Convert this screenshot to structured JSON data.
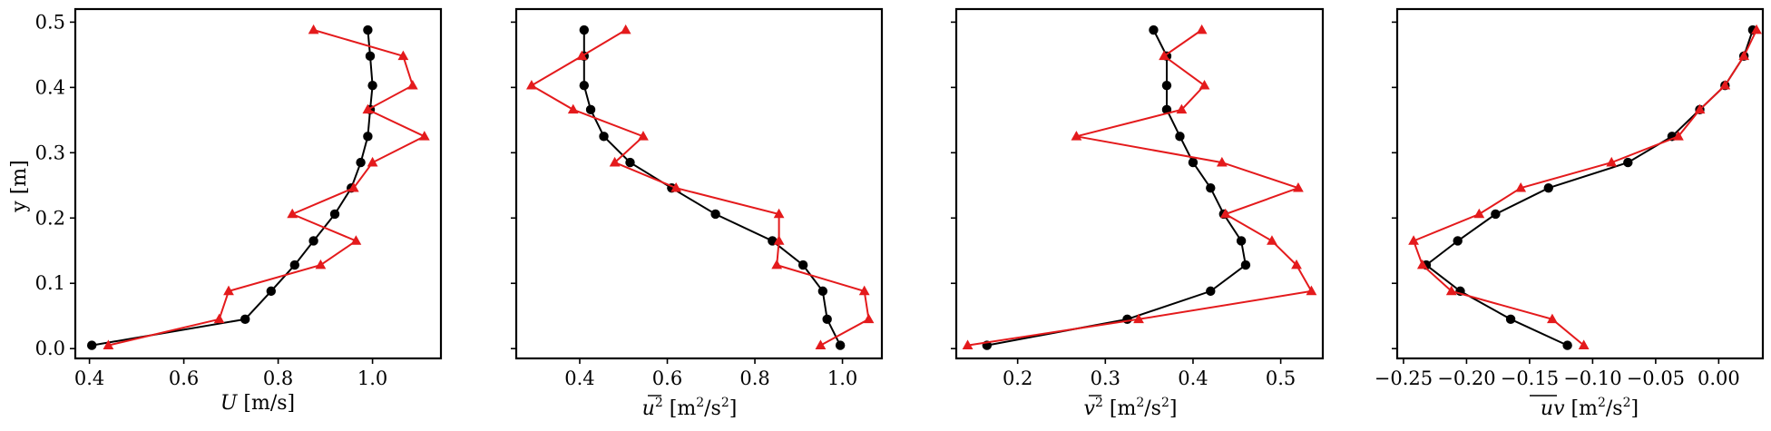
{
  "colors": {
    "black_series": "#000000",
    "red_series": "#e41a1c"
  },
  "chart_data": [
    {
      "type": "line",
      "xlabel": "U [m/s]",
      "ylabel": "y [m]",
      "xlim": [
        0.37,
        1.145
      ],
      "ylim": [
        -0.015,
        0.52
      ],
      "xticks": [
        0.4,
        0.6,
        0.8,
        1.0
      ],
      "xtick_labels": [
        "0.4",
        "0.6",
        "0.8",
        "1.0"
      ],
      "yticks": [
        0.0,
        0.1,
        0.2,
        0.3,
        0.4,
        0.5
      ],
      "ytick_labels": [
        "0.0",
        "0.1",
        "0.2",
        "0.3",
        "0.4",
        "0.5"
      ],
      "series": [
        {
          "color": "#000000",
          "marker": "circle",
          "x": [
            0.405,
            0.73,
            0.785,
            0.835,
            0.875,
            0.92,
            0.955,
            0.975,
            0.99,
            0.995,
            1.0,
            0.995,
            0.99
          ],
          "y": [
            0.005,
            0.045,
            0.088,
            0.128,
            0.165,
            0.206,
            0.246,
            0.285,
            0.325,
            0.366,
            0.403,
            0.448,
            0.488
          ]
        },
        {
          "color": "#e41a1c",
          "marker": "triangle",
          "x": [
            0.44,
            0.675,
            0.695,
            0.89,
            0.965,
            0.83,
            0.96,
            1.0,
            1.11,
            0.99,
            1.085,
            1.065,
            0.875
          ],
          "y": [
            0.005,
            0.045,
            0.088,
            0.128,
            0.165,
            0.206,
            0.246,
            0.285,
            0.325,
            0.366,
            0.403,
            0.448,
            0.488
          ]
        }
      ]
    },
    {
      "type": "line",
      "xlabel": "u² [m²/s²]",
      "xlim": [
        0.255,
        1.09
      ],
      "ylim": [
        -0.015,
        0.52
      ],
      "xticks": [
        0.4,
        0.6,
        0.8,
        1.0
      ],
      "xtick_labels": [
        "0.4",
        "0.6",
        "0.8",
        "1.0"
      ],
      "yticks": [
        0.0,
        0.1,
        0.2,
        0.3,
        0.4,
        0.5
      ],
      "series": [
        {
          "color": "#000000",
          "marker": "circle",
          "x": [
            0.995,
            0.965,
            0.955,
            0.91,
            0.84,
            0.71,
            0.61,
            0.515,
            0.455,
            0.425,
            0.41,
            0.41,
            0.41
          ],
          "y": [
            0.005,
            0.045,
            0.088,
            0.128,
            0.165,
            0.206,
            0.246,
            0.285,
            0.325,
            0.366,
            0.403,
            0.448,
            0.488
          ]
        },
        {
          "color": "#e41a1c",
          "marker": "triangle",
          "x": [
            0.95,
            1.06,
            1.05,
            0.85,
            0.855,
            0.855,
            0.62,
            0.48,
            0.545,
            0.385,
            0.29,
            0.405,
            0.505
          ],
          "y": [
            0.005,
            0.045,
            0.088,
            0.128,
            0.165,
            0.206,
            0.246,
            0.285,
            0.325,
            0.366,
            0.403,
            0.448,
            0.488
          ]
        }
      ]
    },
    {
      "type": "line",
      "xlabel": "v² [m²/s²]",
      "xlim": [
        0.13,
        0.548
      ],
      "ylim": [
        -0.015,
        0.52
      ],
      "xticks": [
        0.2,
        0.3,
        0.4,
        0.5
      ],
      "xtick_labels": [
        "0.2",
        "0.3",
        "0.4",
        "0.5"
      ],
      "yticks": [
        0.0,
        0.1,
        0.2,
        0.3,
        0.4,
        0.5
      ],
      "series": [
        {
          "color": "#000000",
          "marker": "circle",
          "x": [
            0.165,
            0.325,
            0.42,
            0.46,
            0.455,
            0.435,
            0.42,
            0.4,
            0.385,
            0.37,
            0.37,
            0.37,
            0.355
          ],
          "y": [
            0.005,
            0.045,
            0.088,
            0.128,
            0.165,
            0.206,
            0.246,
            0.285,
            0.325,
            0.366,
            0.403,
            0.448,
            0.488
          ]
        },
        {
          "color": "#e41a1c",
          "marker": "triangle",
          "x": [
            0.143,
            0.338,
            0.535,
            0.518,
            0.49,
            0.437,
            0.52,
            0.433,
            0.267,
            0.387,
            0.413,
            0.367,
            0.41
          ],
          "y": [
            0.005,
            0.045,
            0.088,
            0.128,
            0.165,
            0.206,
            0.246,
            0.285,
            0.325,
            0.366,
            0.403,
            0.448,
            0.488
          ]
        }
      ]
    },
    {
      "type": "line",
      "xlabel": "uv [m²/s²]",
      "xlim": [
        -0.255,
        0.035
      ],
      "ylim": [
        -0.015,
        0.52
      ],
      "xticks": [
        -0.25,
        -0.2,
        -0.15,
        -0.1,
        -0.05,
        0.0
      ],
      "xtick_labels": [
        "−0.25",
        "−0.20",
        "−0.15",
        "−0.10",
        "−0.05",
        "0.00"
      ],
      "yticks": [
        0.0,
        0.1,
        0.2,
        0.3,
        0.4,
        0.5
      ],
      "series": [
        {
          "color": "#000000",
          "marker": "circle",
          "x": [
            -0.12,
            -0.165,
            -0.205,
            -0.232,
            -0.207,
            -0.177,
            -0.135,
            -0.072,
            -0.037,
            -0.015,
            0.005,
            0.02,
            0.027
          ],
          "y": [
            0.005,
            0.045,
            0.088,
            0.128,
            0.165,
            0.206,
            0.246,
            0.285,
            0.325,
            0.366,
            0.403,
            0.448,
            0.488
          ]
        },
        {
          "color": "#e41a1c",
          "marker": "triangle",
          "x": [
            -0.107,
            -0.132,
            -0.212,
            -0.235,
            -0.242,
            -0.19,
            -0.157,
            -0.085,
            -0.032,
            -0.015,
            0.005,
            0.02,
            0.03
          ],
          "y": [
            0.005,
            0.045,
            0.088,
            0.128,
            0.165,
            0.206,
            0.246,
            0.285,
            0.325,
            0.366,
            0.403,
            0.448,
            0.488
          ]
        }
      ]
    }
  ]
}
